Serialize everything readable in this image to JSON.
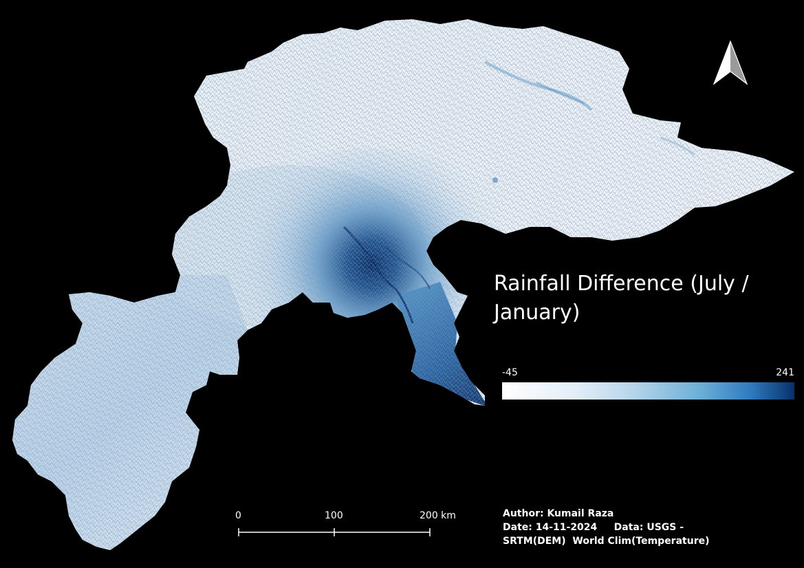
{
  "map": {
    "title": "Rainfall Difference (July / January)",
    "colors": {
      "background": "#000000",
      "low": "#ffffff",
      "mid": "#6baed6",
      "high": "#08306b",
      "relief": "#a8b4c0"
    }
  },
  "legend": {
    "min_label": "-45",
    "max_label": "241",
    "min_value": -45,
    "max_value": 241
  },
  "scale_bar": {
    "ticks": [
      "0",
      "100",
      "200 km"
    ]
  },
  "credits": {
    "author": "Author: Kumail Raza",
    "date_data": "Date: 14-11-2024     Data: USGS -",
    "sources": "SRTM(DEM)  World Clim(Temperature)"
  },
  "north_arrow": {
    "icon": "north-arrow-icon"
  }
}
